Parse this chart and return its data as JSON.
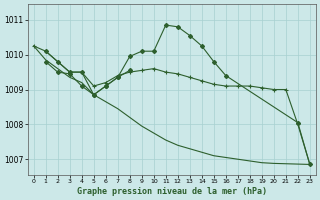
{
  "background_color": "#cce8e8",
  "grid_color": "#b0d8d8",
  "line_color": "#2d5f2d",
  "title": "Graphe pression niveau de la mer (hPa)",
  "ylim": [
    1006.55,
    1011.45
  ],
  "xlim": [
    -0.5,
    23.5
  ],
  "yticks": [
    1007,
    1008,
    1009,
    1010,
    1011
  ],
  "line_long_x": [
    0,
    1,
    2,
    3,
    4,
    5,
    6,
    7,
    8,
    9,
    10,
    11,
    12,
    13,
    14,
    15,
    16,
    17,
    18,
    19,
    20,
    21,
    22,
    23
  ],
  "line_long_y": [
    1010.25,
    1009.85,
    1009.6,
    1009.35,
    1009.2,
    1008.85,
    1008.65,
    1008.45,
    1008.2,
    1007.95,
    1007.75,
    1007.55,
    1007.4,
    1007.3,
    1007.2,
    1007.1,
    1007.05,
    1007.0,
    1006.95,
    1006.9,
    1006.88,
    1006.87,
    1006.86,
    1006.85
  ],
  "line_flat_x": [
    0,
    1,
    2,
    3,
    4,
    5,
    6,
    7,
    8,
    9,
    10,
    11,
    12,
    13,
    14,
    15,
    16,
    17,
    18,
    19,
    20,
    21,
    22,
    23
  ],
  "line_flat_y": [
    1010.25,
    1010.1,
    1009.8,
    1009.5,
    1009.5,
    1009.1,
    1009.2,
    1009.4,
    1009.5,
    1009.55,
    1009.6,
    1009.5,
    1009.45,
    1009.35,
    1009.25,
    1009.15,
    1009.1,
    1009.1,
    1009.1,
    1009.05,
    1009.0,
    1009.0,
    1008.0,
    1006.85
  ],
  "line_peak_x": [
    1,
    2,
    3,
    4,
    5,
    6,
    7,
    8,
    9,
    10,
    11,
    12,
    13,
    14,
    15,
    16,
    22,
    23
  ],
  "line_peak_y": [
    1010.1,
    1009.8,
    1009.5,
    1009.5,
    1008.85,
    1009.1,
    1009.35,
    1009.95,
    1010.1,
    1010.1,
    1010.85,
    1010.8,
    1010.55,
    1010.25,
    1009.8,
    1009.4,
    1008.05,
    1006.85
  ],
  "line_zigzag_x": [
    1,
    2,
    3,
    4,
    5,
    6,
    7,
    8
  ],
  "line_zigzag_y": [
    1009.8,
    1009.5,
    1009.45,
    1009.1,
    1008.85,
    1009.1,
    1009.35,
    1009.55
  ]
}
